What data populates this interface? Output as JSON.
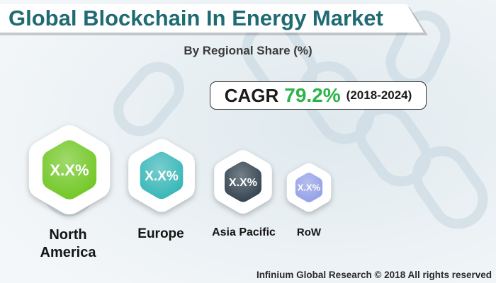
{
  "title": "Global Blockchain In Energy Market",
  "subtitle": "By Regional Share (%)",
  "cagr": {
    "label": "CAGR",
    "value": "79.2%",
    "period": "(2018-2024)"
  },
  "chart_data": {
    "type": "bubble",
    "title": "Global Blockchain In Energy Market",
    "subtitle": "By Regional Share (%)",
    "categories": [
      "North America",
      "Europe",
      "Asia Pacific",
      "RoW"
    ],
    "labels": [
      "North\nAmerica",
      "Europe",
      "Asia Pacific",
      "RoW"
    ],
    "values": [
      "X.X%",
      "X.X%",
      "X.X%",
      "X.X%"
    ],
    "rank": [
      1,
      2,
      3,
      4
    ],
    "colors": [
      "#6cc51c",
      "#2fb3b4",
      "#2a3b48",
      "#8f9ce6"
    ]
  },
  "footer": "Infinium Global Research © 2018 All rights reserved"
}
